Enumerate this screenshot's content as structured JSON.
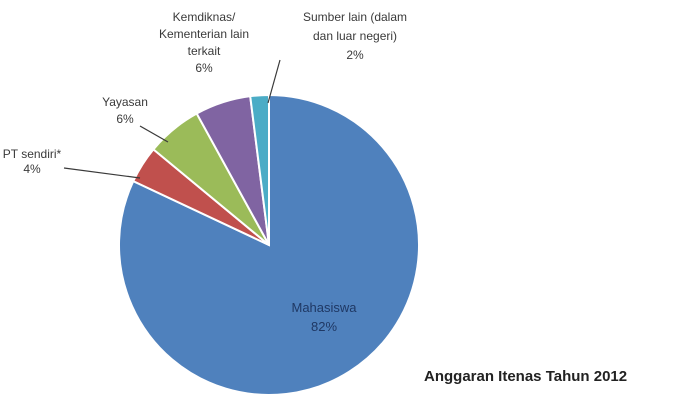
{
  "chart_data": {
    "type": "pie",
    "title": "Anggaran Itenas Tahun 2012",
    "slices": [
      {
        "name": "Mahasiswa",
        "value_label": "82%",
        "value": 82,
        "color": "#4f81bd",
        "label_lines": [
          "Mahasiswa"
        ]
      },
      {
        "name": "PT sendiri*",
        "value_label": "4%",
        "value": 4,
        "color": "#c0504d",
        "label_lines": [
          "PT sendiri*"
        ]
      },
      {
        "name": "Yayasan",
        "value_label": "6%",
        "value": 6,
        "color": "#9bbb59",
        "label_lines": [
          "Yayasan"
        ]
      },
      {
        "name": "Kemdiknas/ Kementerian lain terkait",
        "value_label": "6%",
        "value": 6,
        "color": "#8064a2",
        "label_lines": [
          "Kemdiknas/",
          "Kementerian lain",
          "terkait"
        ]
      },
      {
        "name": "Sumber lain (dalam dan luar negeri)",
        "value_label": "2%",
        "value": 2,
        "color": "#4bacc6",
        "label_lines": [
          "Sumber lain (dalam",
          "dan luar negeri)"
        ]
      }
    ],
    "start_angle_deg": 0,
    "direction": "clockwise"
  }
}
